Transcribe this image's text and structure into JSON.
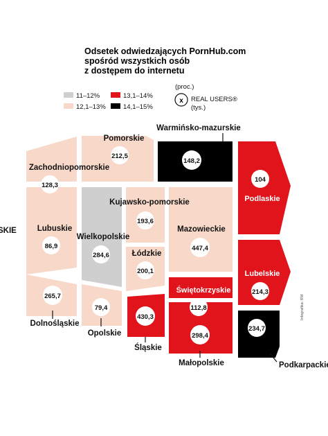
{
  "title_lines": [
    "Odsetek odwiedzających PornHub.com",
    "spośród wszystkich osób",
    "z dostępem do internetu"
  ],
  "legend": {
    "unit": "(proc.)",
    "items": [
      {
        "label": "11–12%",
        "color": "#cfcfcf"
      },
      {
        "label": "12,1–13%",
        "color": "#f8d9c9"
      },
      {
        "label": "13,1–14%",
        "color": "#e2141b"
      },
      {
        "label": "14,1–15%",
        "color": "#000000"
      }
    ],
    "circle_symbol": "x",
    "real_users_label": "REAL USERS®",
    "real_users_unit": "(tys.)"
  },
  "colors": {
    "grey": "#cfcfcf",
    "pink": "#f8d9c9",
    "red": "#e2141b",
    "black": "#000000"
  },
  "regions": [
    {
      "id": "pomorskie",
      "name": "Pomorskie",
      "value": "212,5",
      "category": "12,1–13%"
    },
    {
      "id": "warminsko-mazurskie",
      "name": "Warmińsko-mazurskie",
      "value": "148,2",
      "category": "14,1–15%"
    },
    {
      "id": "zachodniopomorskie",
      "name": "Zachodniopomorskie",
      "value": "128,3",
      "category": "12,1–13%"
    },
    {
      "id": "podlaskie",
      "name": "Podlaskie",
      "value": "104",
      "category": "13,1–14%"
    },
    {
      "id": "kujawsko-pomorskie",
      "name": "Kujawsko-pomorskie",
      "value": "193,6",
      "category": "12,1–13%"
    },
    {
      "id": "lubuskie",
      "name": "Lubuskie",
      "value": "86,9",
      "category": "12,1–13%"
    },
    {
      "id": "wielkopolskie",
      "name": "Wielkopolskie",
      "value": "284,6",
      "category": "11–12%"
    },
    {
      "id": "mazowieckie",
      "name": "Mazowieckie",
      "value": "447,4",
      "category": "12,1–13%"
    },
    {
      "id": "lodzkie",
      "name": "Łódzkie",
      "value": "200,1",
      "category": "12,1–13%"
    },
    {
      "id": "lubelskie",
      "name": "Lubelskie",
      "value": "214,3",
      "category": "13,1–14%"
    },
    {
      "id": "dolnoslaskie",
      "name": "Dolnośląskie",
      "value": "265,7",
      "category": "12,1–13%"
    },
    {
      "id": "opolskie",
      "name": "Opolskie",
      "value": "79,4",
      "category": "12,1–13%"
    },
    {
      "id": "swietokrzyskie",
      "name": "Świętokrzyskie",
      "value": "112,8",
      "category": "13,1–14%"
    },
    {
      "id": "slaskie",
      "name": "Śląskie",
      "value": "430,3",
      "category": "13,1–14%"
    },
    {
      "id": "malopolskie",
      "name": "Małopolskie",
      "value": "298,4",
      "category": "13,1–14%"
    },
    {
      "id": "podkarpackie",
      "name": "Podkarpackie",
      "value": "234,7",
      "category": "14,1–15%"
    }
  ],
  "left_edge_fragment": "SKIE",
  "credit": "Infografika: RM"
}
